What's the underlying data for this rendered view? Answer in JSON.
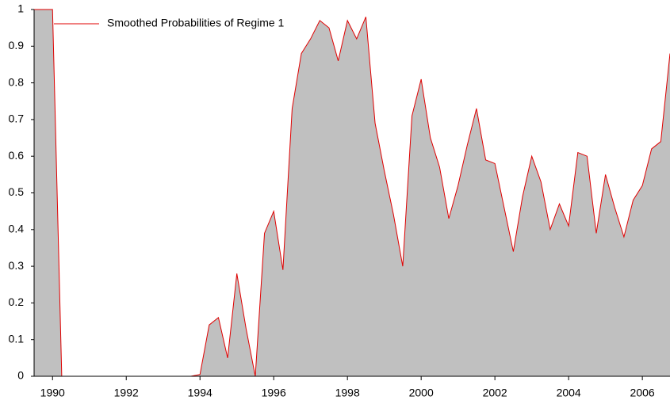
{
  "chart_data": {
    "type": "area",
    "x": [
      1989.5,
      1989.75,
      1990,
      1990.25,
      1990.5,
      1990.75,
      1991,
      1991.25,
      1991.5,
      1991.75,
      1992,
      1992.25,
      1992.5,
      1992.75,
      1993,
      1993.25,
      1993.5,
      1993.75,
      1994,
      1994.25,
      1994.5,
      1994.75,
      1995,
      1995.25,
      1995.5,
      1995.75,
      1996,
      1996.25,
      1996.5,
      1996.75,
      1997,
      1997.25,
      1997.5,
      1997.75,
      1998,
      1998.25,
      1998.5,
      1998.75,
      1999,
      1999.25,
      1999.5,
      1999.75,
      2000,
      2000.25,
      2000.5,
      2000.75,
      2001,
      2001.25,
      2001.5,
      2001.75,
      2002,
      2002.25,
      2002.5,
      2002.75,
      2003,
      2003.25,
      2003.5,
      2003.75,
      2004,
      2004.25,
      2004.5,
      2004.75,
      2005,
      2005.25,
      2005.5,
      2005.75,
      2006,
      2006.25,
      2006.5,
      2006.75
    ],
    "series": [
      {
        "name": "Smoothed Probabilities of Regime 1",
        "color": "#e00000",
        "fill": "#c0c0c0",
        "values": [
          1,
          1,
          1,
          0,
          0,
          0,
          0,
          0,
          0,
          0,
          0,
          0,
          0,
          0,
          0,
          0,
          0,
          0,
          0.005,
          0.14,
          0.16,
          0.05,
          0.28,
          0.13,
          0,
          0.39,
          0.45,
          0.29,
          0.73,
          0.88,
          0.92,
          0.97,
          0.95,
          0.86,
          0.97,
          0.92,
          0.98,
          0.69,
          0.56,
          0.44,
          0.3,
          0.71,
          0.81,
          0.65,
          0.57,
          0.43,
          0.52,
          0.63,
          0.73,
          0.59,
          0.58,
          0.46,
          0.34,
          0.49,
          0.6,
          0.53,
          0.4,
          0.47,
          0.41,
          0.61,
          0.6,
          0.39,
          0.55,
          0.46,
          0.38,
          0.48,
          0.52,
          0.62,
          0.64,
          0.88
        ]
      }
    ],
    "xlim": [
      1989.5,
      2006.75
    ],
    "xticks": [
      1990,
      1992,
      1994,
      1996,
      1998,
      2000,
      2002,
      2004,
      2006
    ],
    "ylim": [
      0,
      1
    ],
    "yticks": [
      0,
      0.1,
      0.2,
      0.3,
      0.4,
      0.5,
      0.6,
      0.7,
      0.8,
      0.9,
      1
    ],
    "grid": false,
    "legend": "top-left"
  }
}
